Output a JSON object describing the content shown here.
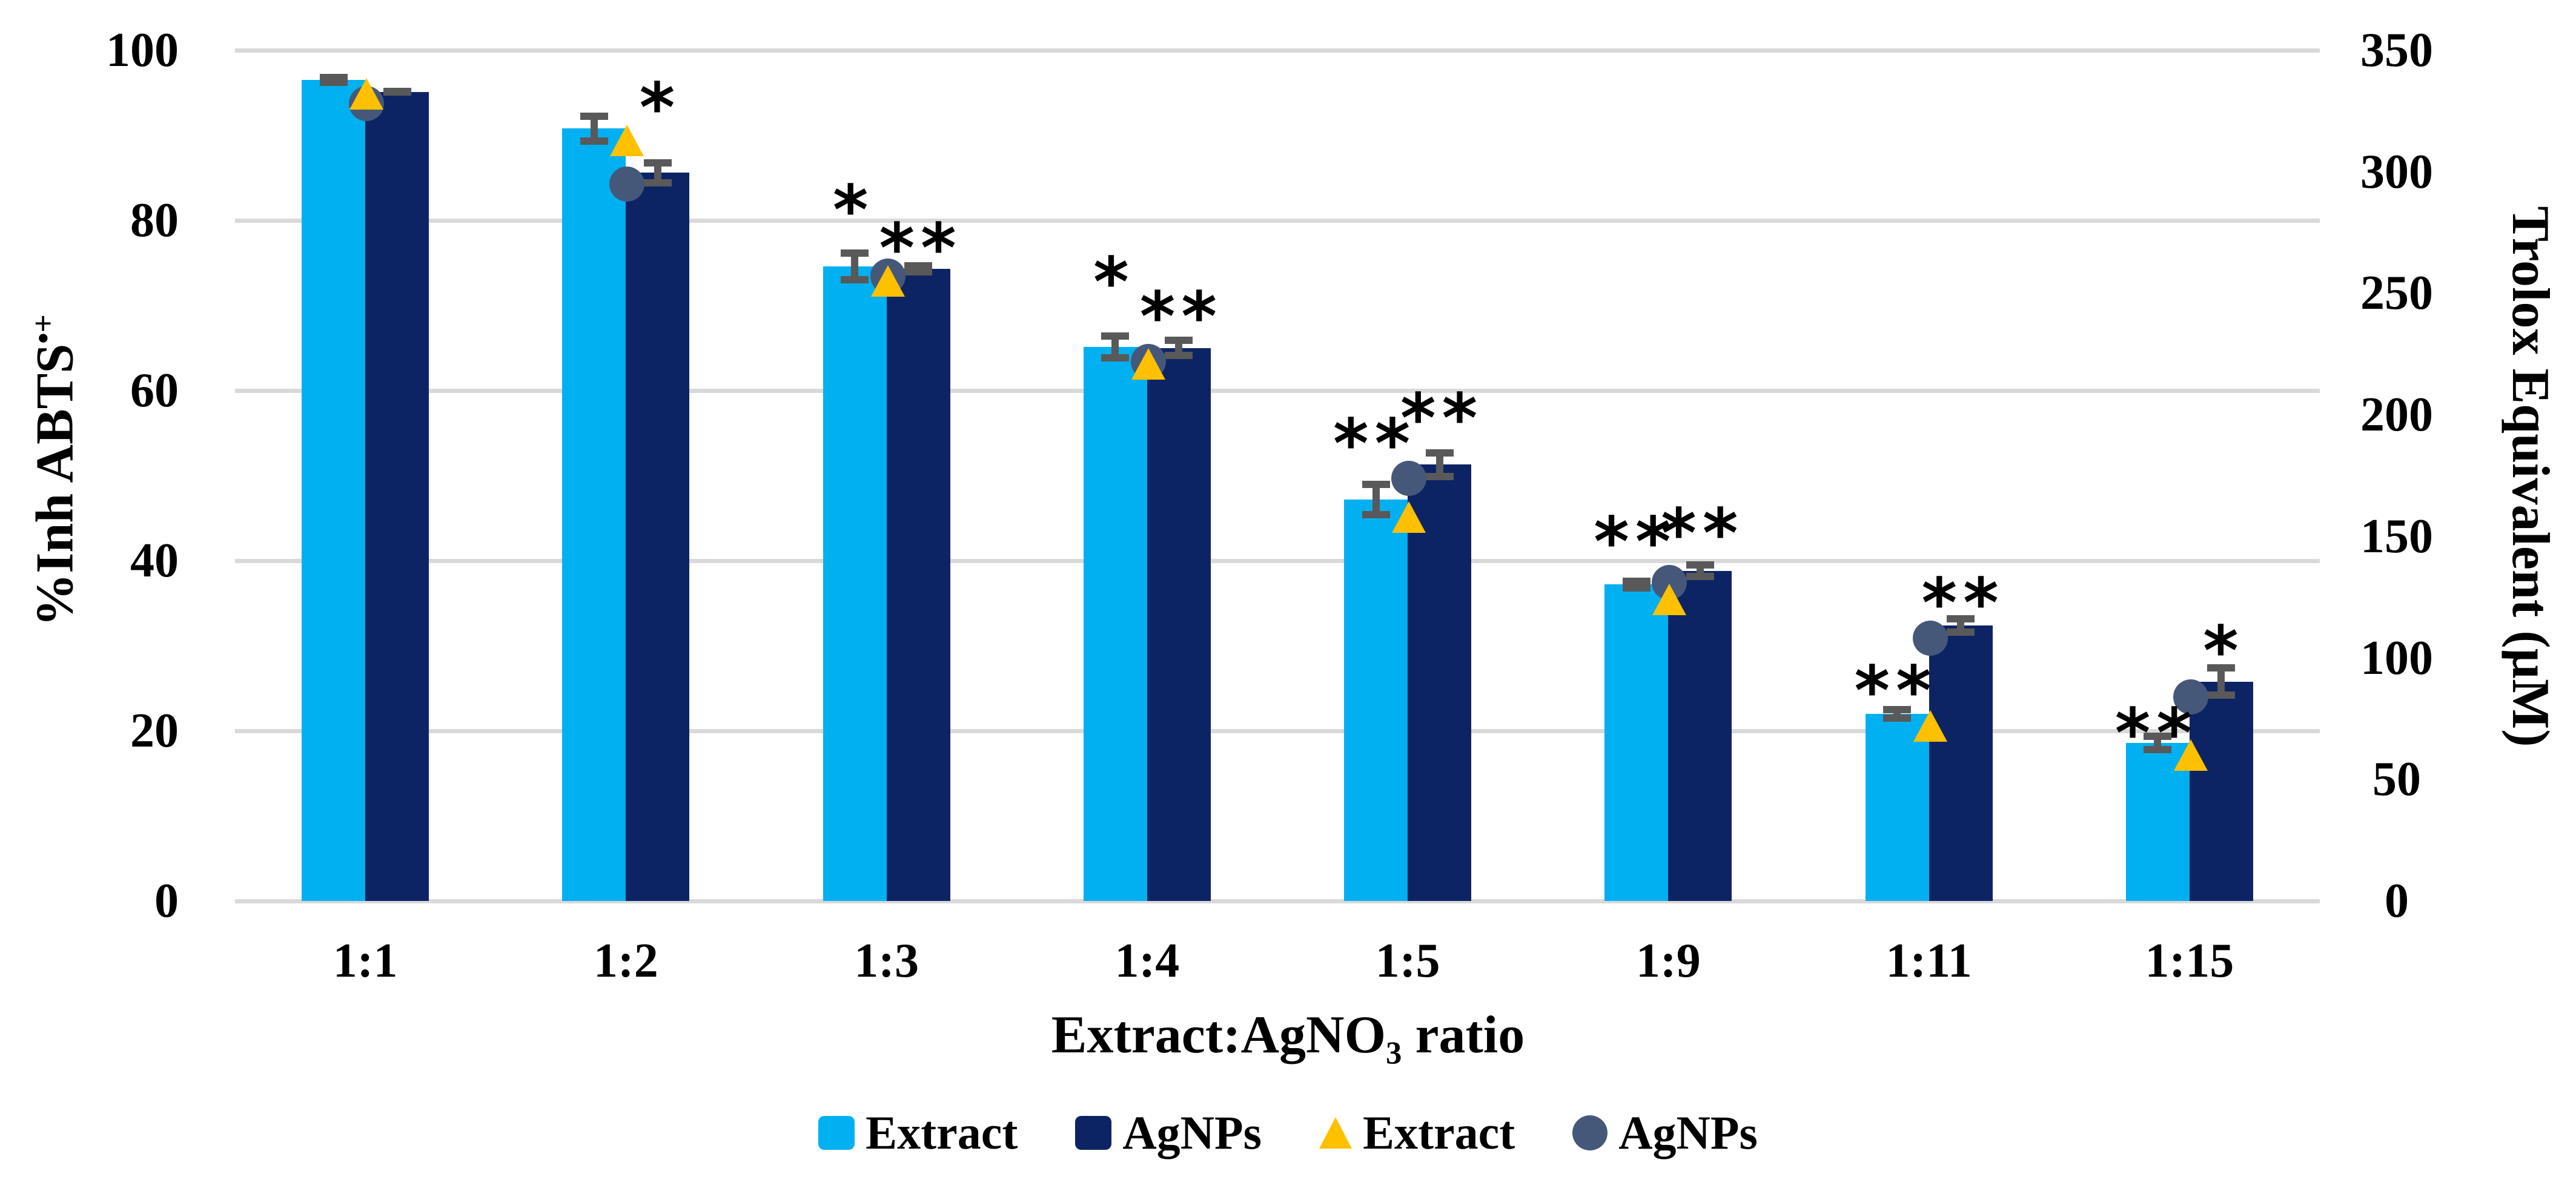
{
  "colors": {
    "extract_bar": "#00B0F0",
    "agnps_bar": "#0D2464",
    "extract_marker": "#FFC000",
    "agnps_marker": "#46587A",
    "error_bar": "#595959",
    "gridline": "#D9D9D9",
    "text": "#000000",
    "background": "#FFFFFF"
  },
  "chart_data": {
    "type": "bar",
    "title": "",
    "grid": true,
    "legend_position": "bottom",
    "categories": [
      "1:1",
      "1:2",
      "1:3",
      "1:4",
      "1:5",
      "1:9",
      "1:11",
      "1:15"
    ],
    "x_axis": {
      "label_pre": "Extract:AgNO",
      "label_sub": "3",
      "label_post": " ratio"
    },
    "left_axis": {
      "label": "%Inh ABTS",
      "label_sup": "•+",
      "ticks": [
        0,
        20,
        40,
        60,
        80,
        100
      ],
      "range": [
        0,
        100
      ]
    },
    "right_axis": {
      "label": "Trolox Equivalent (µM)",
      "ticks": [
        0,
        50,
        100,
        150,
        200,
        250,
        300,
        350
      ],
      "range": [
        0,
        350
      ]
    },
    "series": [
      {
        "name": "Extract",
        "type": "bar",
        "axis": "left",
        "color_key": "extract_bar",
        "values": [
          96.5,
          90.8,
          74.6,
          65.1,
          47.2,
          37.2,
          22.0,
          18.6
        ],
        "errors": [
          0.7,
          1.9,
          2.0,
          1.7,
          2.2,
          0.8,
          0.9,
          1.2
        ],
        "sig": [
          null,
          null,
          {
            "t": "*",
            "y": 82.0
          },
          {
            "t": "*",
            "y": 73.5
          },
          {
            "t": "**",
            "y": 54.5
          },
          {
            "t": "**",
            "y": 43.0
          },
          {
            "t": "**",
            "y": 25.5
          },
          {
            "t": "**",
            "y": 20.5
          }
        ]
      },
      {
        "name": "AgNPs",
        "type": "bar",
        "axis": "left",
        "color_key": "agnps_bar",
        "values": [
          95.1,
          85.6,
          74.3,
          65.0,
          51.3,
          38.8,
          32.4,
          25.8
        ],
        "errors": [
          0.4,
          1.6,
          0.8,
          1.3,
          1.8,
          1.1,
          1.2,
          2.0
        ],
        "sig": [
          null,
          {
            "t": "*",
            "y": 94.0
          },
          {
            "t": "**",
            "y": 77.5
          },
          {
            "t": "**",
            "y": 69.5
          },
          {
            "t": "**",
            "y": 57.5
          },
          {
            "t": "**",
            "y": 44.0
          },
          {
            "t": "**",
            "y": 35.8
          },
          {
            "t": "*",
            "y": 30.2
          }
        ]
      },
      {
        "name": "Extract",
        "type": "scatter-triangle",
        "axis": "right",
        "color_key": "extract_marker",
        "values": [
          332,
          313,
          255,
          221,
          158,
          124,
          72,
          60
        ]
      },
      {
        "name": "AgNPs",
        "type": "scatter-circle",
        "axis": "right",
        "color_key": "agnps_marker",
        "values": [
          328,
          295,
          257,
          222,
          174,
          131,
          108,
          84
        ]
      }
    ],
    "legend": [
      {
        "label": "Extract",
        "marker": "square",
        "color_key": "extract_bar"
      },
      {
        "label": "AgNPs",
        "marker": "square",
        "color_key": "agnps_bar"
      },
      {
        "label": "Extract",
        "marker": "triangle",
        "color_key": "extract_marker"
      },
      {
        "label": "AgNPs",
        "marker": "circle",
        "color_key": "agnps_marker"
      }
    ]
  }
}
